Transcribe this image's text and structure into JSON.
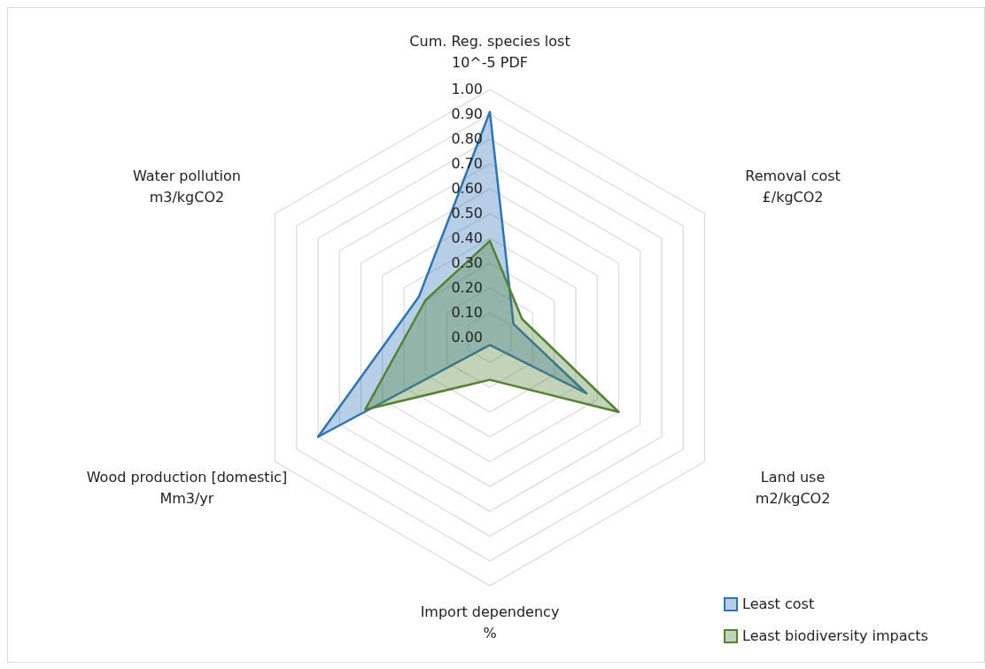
{
  "chart_data": {
    "type": "radar",
    "categories": [
      "Cum. Reg. species lost\n10^-5 PDF",
      "Removal cost\n£/kgCO2",
      "Land use\nm2/kgCO2",
      "Import dependency\n%",
      "Wood production [domestic]\nMm3/yr",
      "Water pollution\nm3/kgCO2"
    ],
    "series": [
      {
        "name": "Least cost",
        "color": "#2e75b6",
        "values": [
          0.91,
          0.11,
          0.45,
          0.03,
          0.8,
          0.33
        ]
      },
      {
        "name": "Least biodiversity impacts",
        "color": "#548235",
        "values": [
          0.39,
          0.15,
          0.6,
          0.17,
          0.58,
          0.3
        ]
      }
    ],
    "ylim": [
      0,
      1
    ],
    "yticks": [
      {
        "value": 0,
        "label": "0.00"
      },
      {
        "value": 0.1,
        "label": "0.10"
      },
      {
        "value": 0.2,
        "label": "0.20"
      },
      {
        "value": 0.3,
        "label": "0.30"
      },
      {
        "value": 0.4,
        "label": "0.40"
      },
      {
        "value": 0.5,
        "label": "0.50"
      },
      {
        "value": 0.6,
        "label": "0.60"
      },
      {
        "value": 0.7,
        "label": "0.70"
      },
      {
        "value": 0.8,
        "label": "0.80"
      },
      {
        "value": 0.9,
        "label": "0.90"
      },
      {
        "value": 1,
        "label": "1.00"
      }
    ],
    "grid": true,
    "legend": "bottom right"
  }
}
